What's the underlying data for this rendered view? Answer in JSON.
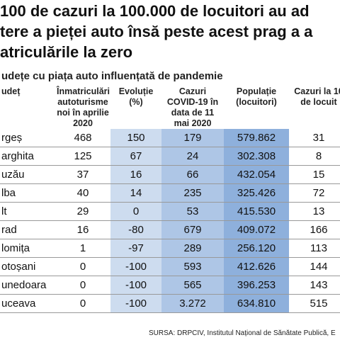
{
  "header": {
    "title_lines": [
      "100 de cazuri la 100.000 de locuitori au ad",
      "tere a pieței auto însă peste acest prag a a",
      "atriculările la zero"
    ],
    "subtitle": "udețe cu piața auto influențată de pandemie"
  },
  "table": {
    "columns": [
      "udeț",
      "Înmatriculări autoturisme noi în aprilie 2020",
      "Evoluție (%)",
      "Cazuri COVID-19 în data de 11 mai 2020",
      "Populație (locuitori)",
      "Cazuri la 10 de locuit"
    ],
    "rows": [
      [
        "rgeș",
        "468",
        "150",
        "179",
        "579.862",
        "31"
      ],
      [
        "arghita",
        "125",
        "67",
        "24",
        "302.308",
        "8"
      ],
      [
        "uzău",
        "37",
        "16",
        "66",
        "432.054",
        "15"
      ],
      [
        "lba",
        "40",
        "14",
        "235",
        "325.426",
        "72"
      ],
      [
        "lt",
        "29",
        "0",
        "53",
        "415.530",
        "13"
      ],
      [
        "rad",
        "16",
        "-80",
        "679",
        "409.072",
        "166"
      ],
      [
        "lomița",
        "1",
        "-97",
        "289",
        "256.120",
        "113"
      ],
      [
        "otoșani",
        "0",
        "-100",
        "593",
        "412.626",
        "144"
      ],
      [
        "unedoara",
        "0",
        "-100",
        "565",
        "396.253",
        "143"
      ],
      [
        "uceava",
        "0",
        "-100",
        "3.272",
        "634.810",
        "515"
      ]
    ]
  },
  "footer": {
    "source": "SURSA: DRPCIV, Institutul Național de Sănătate Publică, E"
  }
}
